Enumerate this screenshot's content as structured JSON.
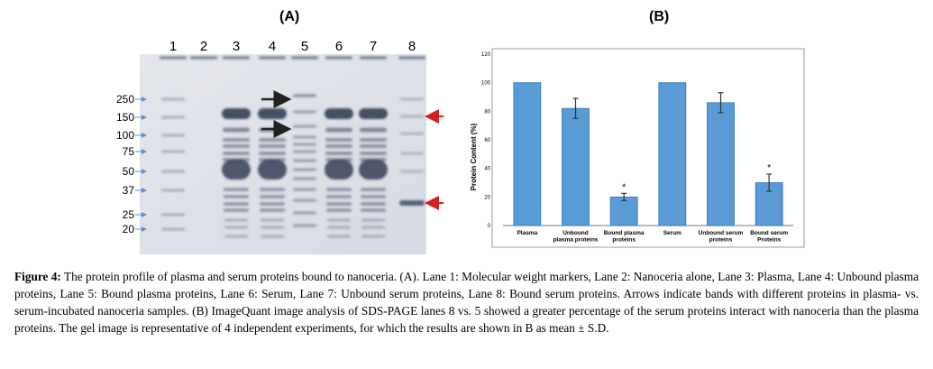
{
  "panel_a_label": "(A)",
  "panel_b_label": "(B)",
  "gel": {
    "lanes": [
      "1",
      "2",
      "3",
      "4",
      "5",
      "6",
      "7",
      "8"
    ],
    "markers": [
      "250",
      "150",
      "100",
      "75",
      "50",
      "37",
      "25",
      "20"
    ]
  },
  "chart_data": {
    "type": "bar",
    "categories": [
      "Plasma",
      "Unbound plasma proteins",
      "Bound plasma proteins",
      "Serum",
      "Unbound serum proteins",
      "Bound serum Proteins"
    ],
    "category_lines": [
      [
        "Plasma"
      ],
      [
        "Unbound",
        "plasma proteins"
      ],
      [
        "Bound plasma",
        "proteins"
      ],
      [
        "Serum"
      ],
      [
        "Unbound serum",
        "proteins"
      ],
      [
        "Bound serum",
        "Proteins"
      ]
    ],
    "values": [
      100,
      82,
      20,
      100,
      86,
      30
    ],
    "errors": [
      0,
      7,
      2.5,
      0,
      7,
      6
    ],
    "significance": [
      "",
      "",
      "*",
      "",
      "",
      "*"
    ],
    "ylabel": "Protein Content (%)",
    "xlabel": "",
    "ylim": [
      0,
      120
    ],
    "yticks": [
      0,
      20,
      40,
      60,
      80,
      100,
      120
    ],
    "bar_color": "#5b9bd5",
    "bar_edge": "#2e75b6"
  },
  "caption": {
    "label": "Figure 4:",
    "text": " The protein profile of plasma and serum proteins bound to nanoceria. (A). Lane 1: Molecular weight markers, Lane 2: Nanoceria alone, Lane 3: Plasma, Lane 4: Unbound plasma proteins, Lane 5: Bound plasma proteins, Lane 6: Serum, Lane 7: Unbound serum proteins, Lane 8: Bound serum proteins. Arrows indicate bands with different proteins in plasma- vs. serum-incubated nanoceria samples.  (B) ImageQuant image analysis of SDS-PAGE lanes 8 vs. 5 showed a greater percentage of the serum proteins interact with nanoceria than the plasma proteins. The gel image is representative of 4 independent experiments, for which the results are shown in B as mean ± S.D."
  }
}
